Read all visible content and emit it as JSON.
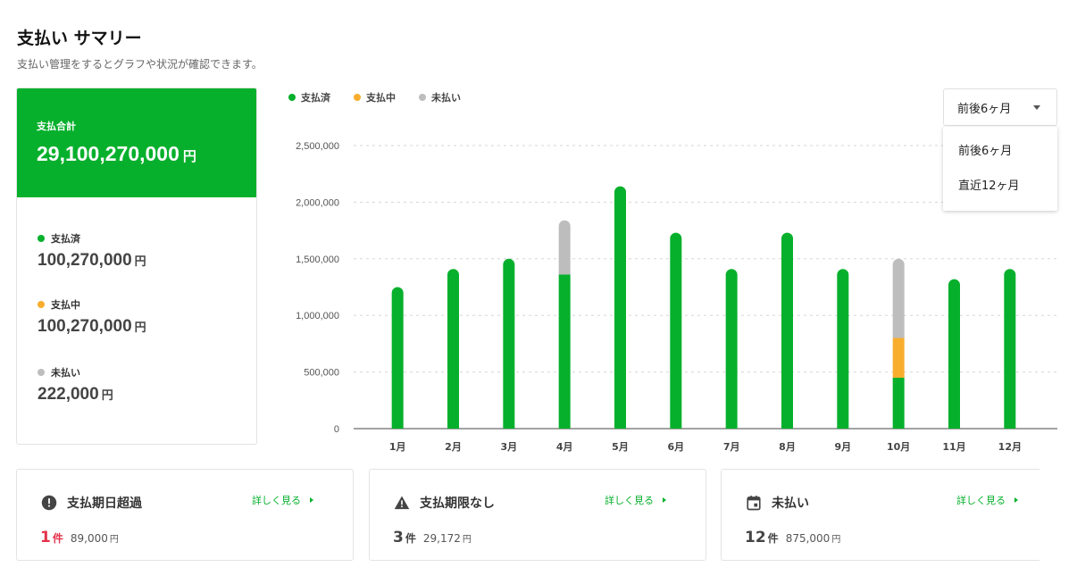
{
  "header": {
    "title": "支払い サマリー",
    "subtitle": "支払い管理をするとグラフや状況が確認できます。"
  },
  "summary": {
    "total_label": "支払合計",
    "total_value": "29,100,270,000",
    "unit": "円",
    "statuses": [
      {
        "label": "支払済",
        "amount": "100,270,000",
        "color": "#06b02c"
      },
      {
        "label": "支払中",
        "amount": "100,270,000",
        "color": "#f9ad2d"
      },
      {
        "label": "未払い",
        "amount": "222,000",
        "color": "#bdbdbd"
      }
    ]
  },
  "legend": [
    {
      "label": "支払済",
      "color": "#06b02c"
    },
    {
      "label": "支払中",
      "color": "#f9ad2d"
    },
    {
      "label": "未払い",
      "color": "#bdbdbd"
    }
  ],
  "period_select": {
    "selected": "前後6ヶ月",
    "options": [
      "前後6ヶ月",
      "直近12ヶ月"
    ]
  },
  "chart_data": {
    "type": "bar",
    "stacked": true,
    "categories": [
      "1月",
      "2月",
      "3月",
      "4月",
      "5月",
      "6月",
      "7月",
      "8月",
      "9月",
      "10月",
      "11月",
      "12月"
    ],
    "series": [
      {
        "name": "支払済",
        "color": "#06b02c",
        "values": [
          1250000,
          1410000,
          1500000,
          1360000,
          2140000,
          1730000,
          1410000,
          1730000,
          1410000,
          450000,
          1320000,
          1410000
        ]
      },
      {
        "name": "支払中",
        "color": "#f9ad2d",
        "values": [
          0,
          0,
          0,
          0,
          0,
          0,
          0,
          0,
          0,
          350000,
          0,
          0
        ]
      },
      {
        "name": "未払い",
        "color": "#bdbdbd",
        "values": [
          0,
          0,
          0,
          480000,
          0,
          0,
          0,
          0,
          0,
          700000,
          0,
          0
        ]
      }
    ],
    "yticks": [
      "0",
      "500,000",
      "1,000,000",
      "1,500,000",
      "2,000,000",
      "2,500,000"
    ],
    "ylim": [
      0,
      2500000
    ],
    "grid": true,
    "legend_position": "top-left"
  },
  "cards": [
    {
      "icon": "alert-circle-icon",
      "title": "支払期日超過",
      "link": "詳しく見る",
      "count": "1",
      "count_unit": "件",
      "count_color": "#e5324b",
      "amount": "89,000",
      "amount_unit": "円"
    },
    {
      "icon": "warning-triangle-icon",
      "title": "支払期限なし",
      "link": "詳しく見る",
      "count": "3",
      "count_unit": "件",
      "count_color": "#444444",
      "amount": "29,172",
      "amount_unit": "円"
    },
    {
      "icon": "calendar-icon",
      "title": "未払い",
      "link": "詳しく見る",
      "count": "12",
      "count_unit": "件",
      "count_color": "#444444",
      "amount": "875,000",
      "amount_unit": "円"
    }
  ]
}
